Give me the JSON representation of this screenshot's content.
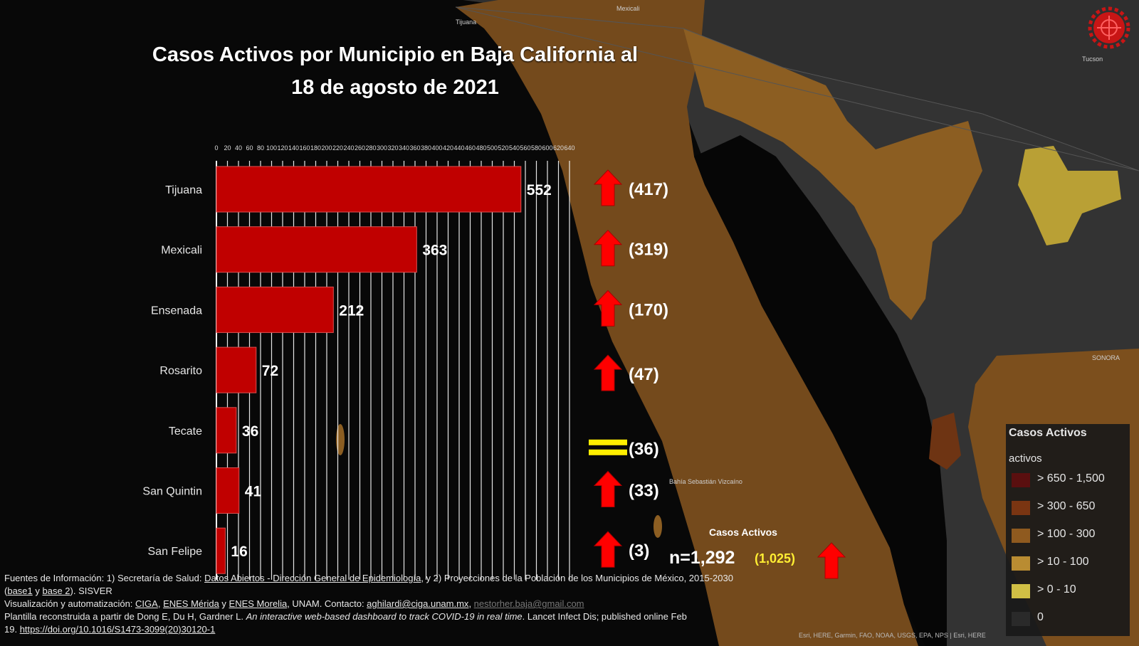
{
  "title": {
    "line1": "Casos Activos por Municipio en Baja California al",
    "line2": "18 de agosto de 2021"
  },
  "chart_data": {
    "type": "bar",
    "orientation": "horizontal",
    "title": "Casos Activos por Municipio en Baja California al 18 de agosto de 2021",
    "categories": [
      "Tijuana",
      "Mexicali",
      "Ensenada",
      "Rosarito",
      "Tecate",
      "San Quintin",
      "San Felipe"
    ],
    "values": [
      552,
      363,
      212,
      72,
      36,
      41,
      16
    ],
    "previous_values": [
      "(417)",
      "(319)",
      "(170)",
      "(47)",
      "(36)",
      "(33)",
      "(3)"
    ],
    "trend": [
      "up",
      "up",
      "up",
      "up",
      "equal",
      "up",
      "up"
    ],
    "xlim": [
      0,
      640
    ],
    "tick_step": 20,
    "bar_color": "#c00000",
    "grid": true
  },
  "total": {
    "caption": "Casos Activos",
    "value": "n=1,292",
    "previous": "(1,025)",
    "trend": "up"
  },
  "legend": {
    "title": "Casos Activos",
    "subtitle": "activos",
    "items": [
      {
        "label": "> 650 - 1,500",
        "color": "#5a0f0f"
      },
      {
        "label": "> 300 - 650",
        "color": "#7a3512"
      },
      {
        "label": "> 100 - 300",
        "color": "#8f5a1f"
      },
      {
        "label": "> 10 - 100",
        "color": "#b98c32"
      },
      {
        "label": "> 0 - 10",
        "color": "#d0bf45"
      },
      {
        "label": "0",
        "color": "#2a2a2a"
      }
    ]
  },
  "map_labels": {
    "tijuana": "Tijuana",
    "mexicali": "Mexicali",
    "tucson": "Tucson",
    "sonora": "SONORA",
    "bahia": "Bahía Sebastián Vizcaíno"
  },
  "sources": {
    "line1_a": "Fuentes de Información: 1) Secretaría de Salud: ",
    "line1_link": "Datos Abiertos - Dirección General de Epidemiología",
    "line1_b": ", y 2) Proyecciones de la Población de los Municipios de México, 2015-2030",
    "line2_a": "(",
    "line2_link1": "base1",
    "line2_b": " y ",
    "line2_link2": "base 2",
    "line2_c": "). SISVER",
    "line3_a": " Visualización y automatización: ",
    "line3_l1": "CIGA",
    "line3_sep1": ", ",
    "line3_l2": "ENES Mérida",
    "line3_sep2": " y ",
    "line3_l3": "ENES Morelia",
    "line3_b": ", UNAM. Contacto: ",
    "line3_email1": "aghilardi@ciga.unam.mx",
    "line3_sep3": ", ",
    "line3_email2": "nestorher.baja@gmail.com",
    "line4_a": " Plantilla reconstruida a partir de Dong E, Du H, Gardner L. ",
    "line4_italic": "An interactive web-based dashboard to track COVID-19 in real time",
    "line4_b": ". Lancet Infect Dis; published online Feb",
    "line5_a": "19. ",
    "line5_link": "https://doi.org/10.1016/S1473-3099(20)30120-1"
  },
  "map_credits": "Esri, HERE, Garmin, FAO, NOAA, USGS, EPA, NPS | Esri, HERE"
}
